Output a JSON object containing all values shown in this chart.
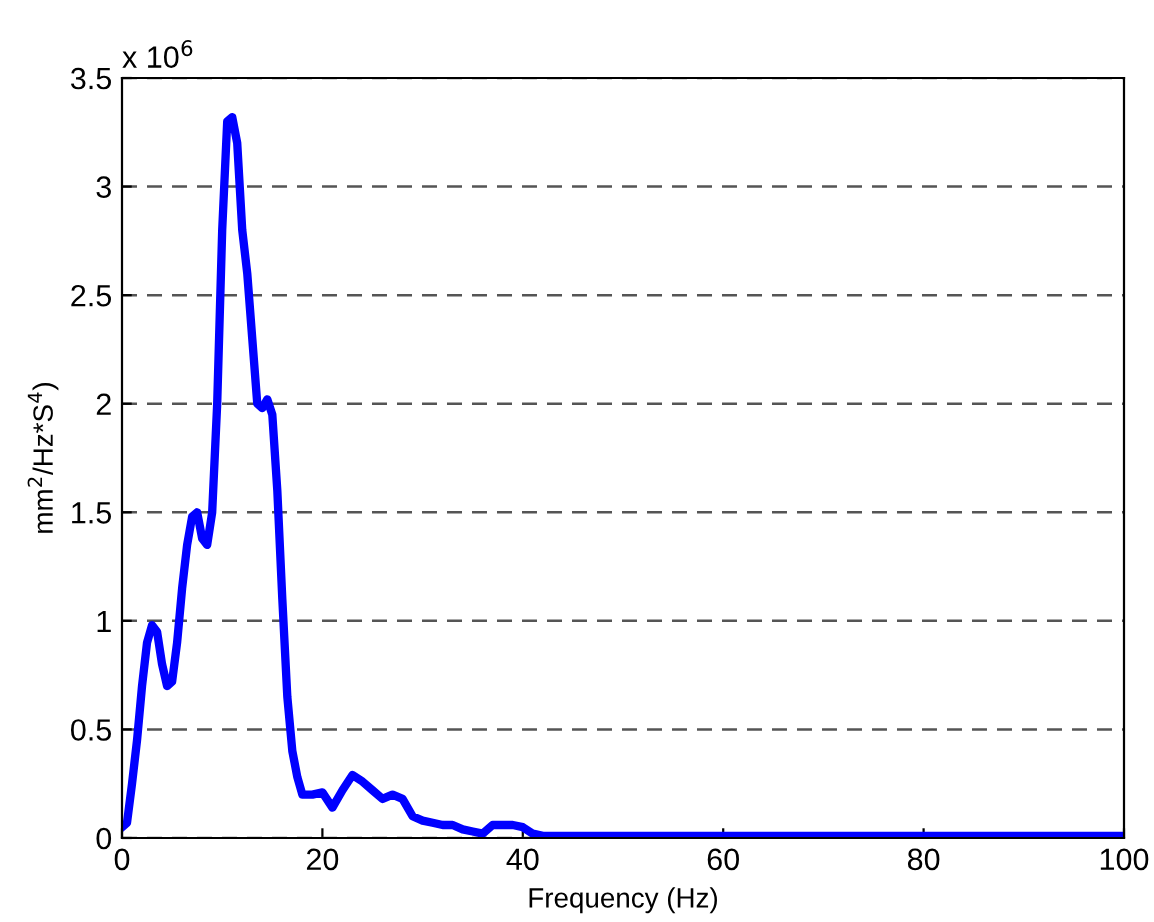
{
  "chart_data": {
    "type": "line",
    "xlabel": "Frequency (Hz)",
    "ylabel": "mm$^{2}$/Hz*S$^{4}$)",
    "annotations": [
      "x 10$^{6}$"
    ],
    "xlim": [
      0,
      100
    ],
    "xticks": [
      0,
      20,
      40,
      60,
      80,
      100
    ],
    "ylim": [
      0,
      3.5
    ],
    "yticks": [
      0,
      0.5,
      1,
      1.5,
      2,
      2.5,
      3,
      3.5
    ],
    "grid": "y",
    "line_style": "solid",
    "series": [
      {
        "color": "#0000ff",
        "x": [
          0,
          0.5,
          1,
          1.5,
          2,
          2.5,
          3,
          3.5,
          4,
          4.5,
          5,
          5.5,
          6,
          6.5,
          7,
          7.5,
          8,
          8.5,
          9,
          9.5,
          10,
          10.5,
          11,
          11.5,
          12,
          12.5,
          13,
          13.5,
          14,
          14.5,
          15,
          15.5,
          16,
          16.5,
          17,
          17.5,
          18,
          19,
          20,
          21,
          22,
          23,
          24,
          25,
          26,
          27,
          28,
          29,
          30,
          31,
          32,
          33,
          34,
          35,
          36,
          37,
          38,
          39,
          40,
          41,
          42,
          50,
          100
        ],
        "values": [
          0.05,
          0.07,
          0.25,
          0.45,
          0.7,
          0.9,
          0.98,
          0.95,
          0.8,
          0.7,
          0.72,
          0.9,
          1.15,
          1.35,
          1.48,
          1.5,
          1.38,
          1.35,
          1.5,
          2.0,
          2.8,
          3.3,
          3.32,
          3.2,
          2.8,
          2.6,
          2.3,
          2.0,
          1.98,
          2.02,
          1.95,
          1.6,
          1.1,
          0.65,
          0.4,
          0.28,
          0.2,
          0.2,
          0.21,
          0.14,
          0.22,
          0.29,
          0.26,
          0.22,
          0.18,
          0.2,
          0.18,
          0.1,
          0.08,
          0.07,
          0.06,
          0.06,
          0.04,
          0.03,
          0.02,
          0.06,
          0.06,
          0.06,
          0.05,
          0.02,
          0.01,
          0.01,
          0.01
        ]
      }
    ]
  }
}
